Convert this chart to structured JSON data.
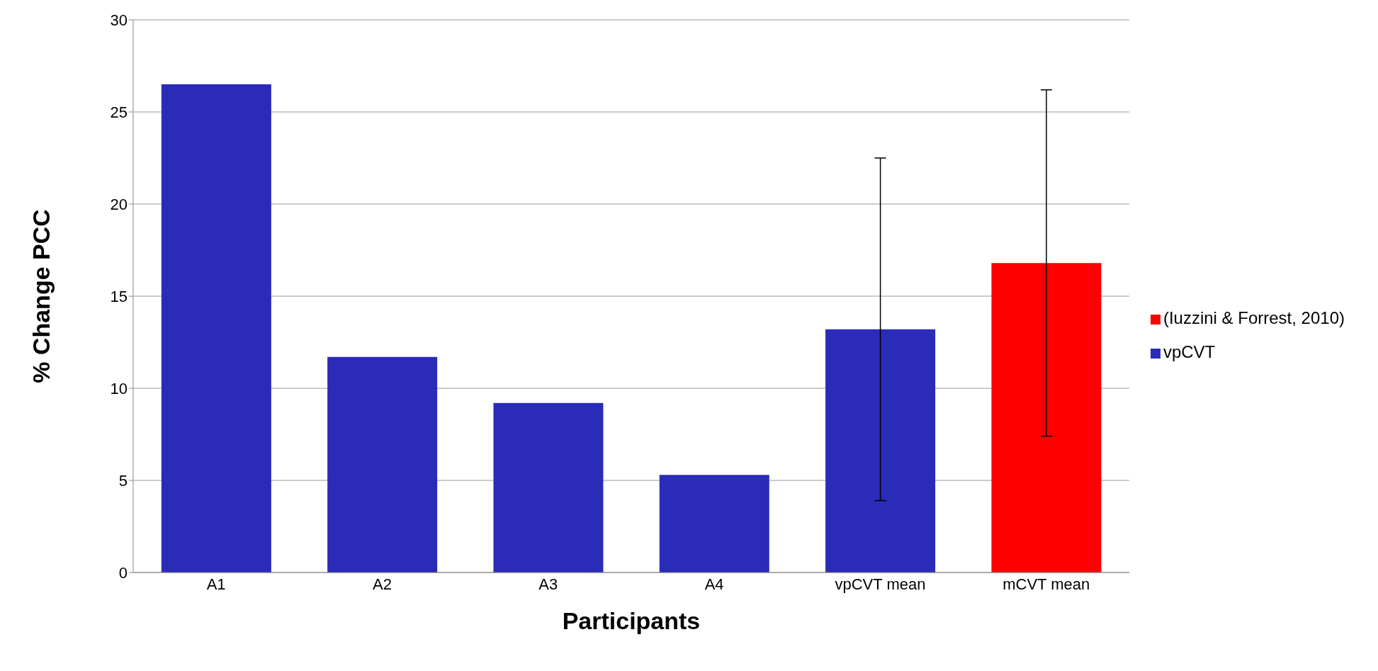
{
  "chart_data": {
    "type": "bar",
    "xlabel": "Participants",
    "ylabel": "% Change PCC",
    "categories": [
      "A1",
      "A2",
      "A3",
      "A4",
      "vpCVT mean",
      "mCVT mean"
    ],
    "series": [
      {
        "name": "vpCVT",
        "color": "#2a2bb8",
        "values": [
          26.5,
          11.7,
          9.2,
          5.3,
          13.2,
          null
        ],
        "errors": [
          null,
          null,
          null,
          null,
          9.3,
          null
        ]
      },
      {
        "name": "(Iuzzini & Forrest, 2010)",
        "color": "#ff0000",
        "values": [
          null,
          null,
          null,
          null,
          null,
          16.8
        ],
        "errors": [
          null,
          null,
          null,
          null,
          null,
          9.4
        ]
      }
    ],
    "ylim": [
      0,
      30
    ],
    "yticks": [
      0,
      5,
      10,
      15,
      20,
      25,
      30
    ],
    "grid": "y",
    "legend": "right"
  }
}
